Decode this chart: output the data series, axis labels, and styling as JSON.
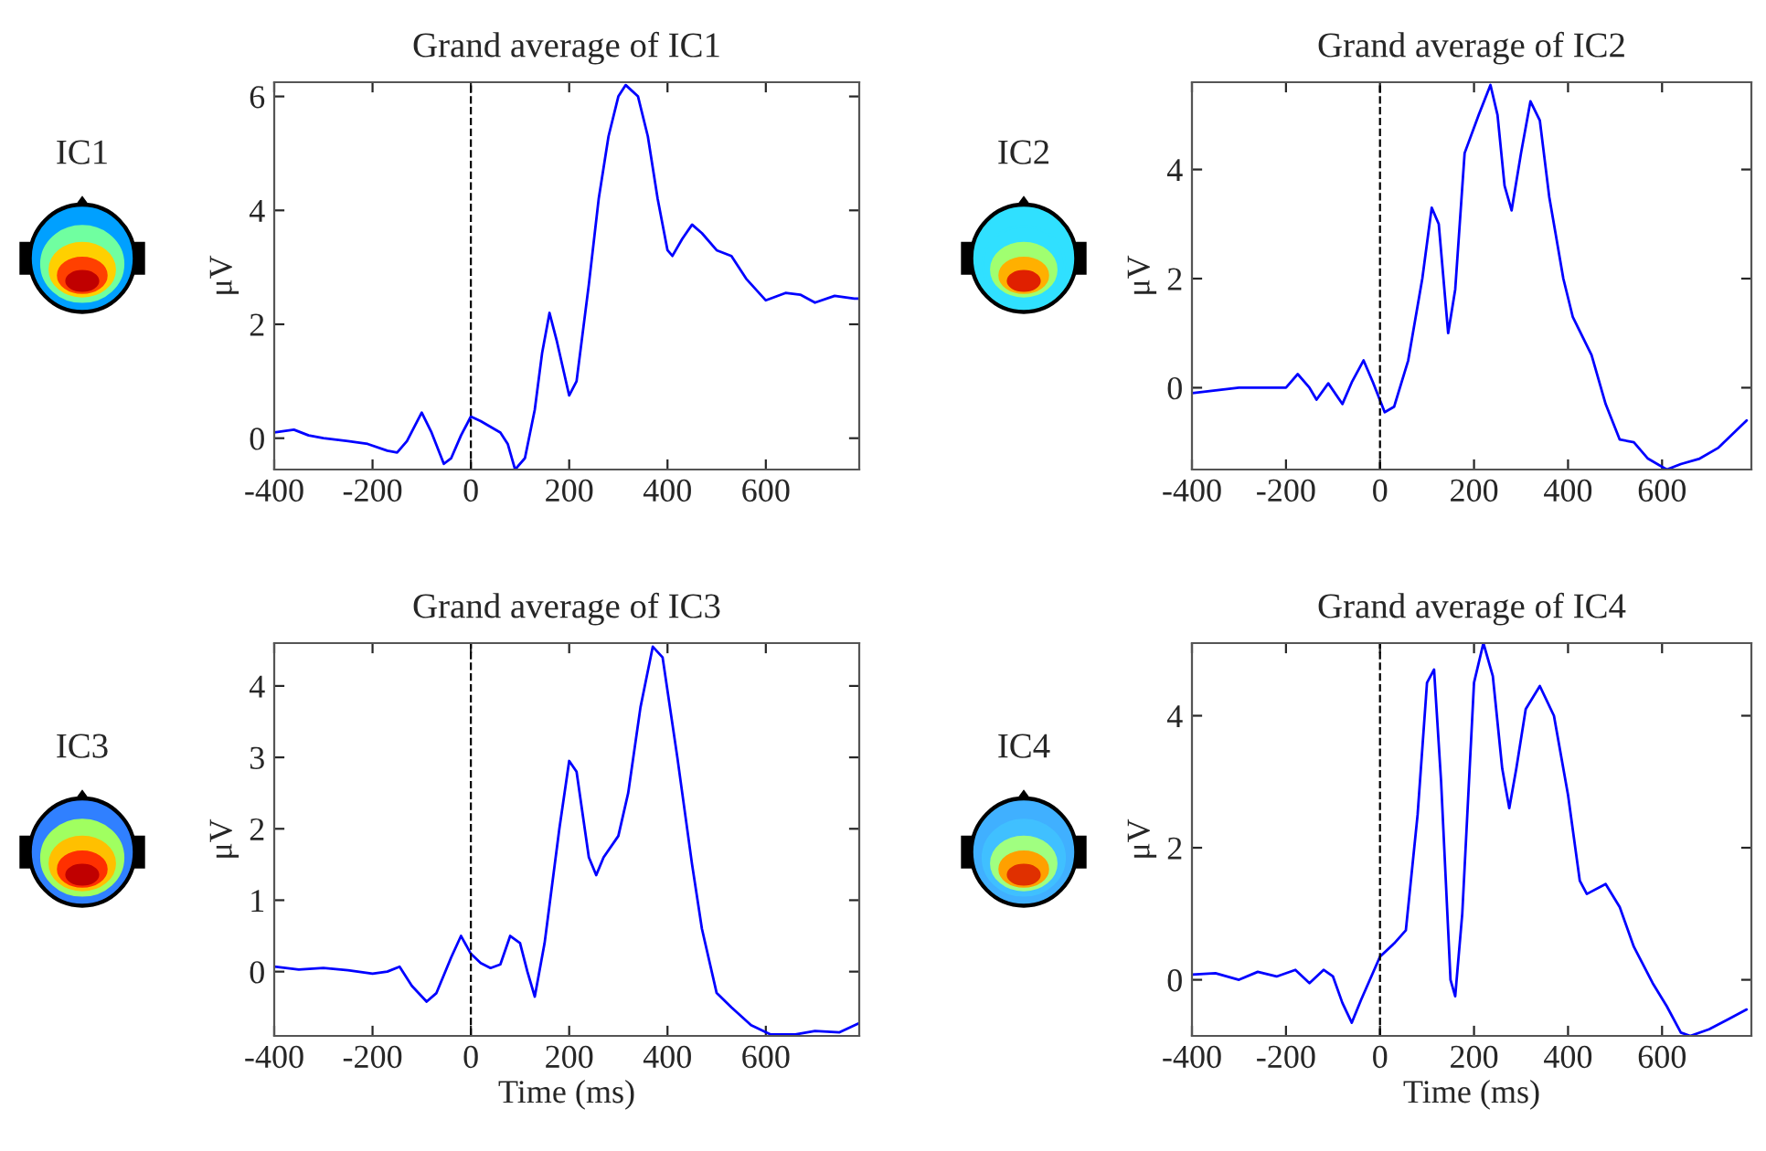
{
  "chart_data": [
    {
      "type": "line",
      "title": "Grand average of IC1",
      "ylabel": "μV",
      "annotations": [
        "IC1"
      ],
      "xlim": [
        -400,
        790
      ],
      "ylim": [
        -0.55,
        6.25
      ],
      "xticks": [
        -400,
        -200,
        0,
        200,
        400,
        600
      ],
      "yticks": [
        0,
        2,
        4,
        6
      ],
      "ref_lines": [
        {
          "axis": "x",
          "value": 0,
          "color": "#000000",
          "line_style": "dashed"
        }
      ],
      "grid": false,
      "legend": false,
      "series": [
        {
          "color": "#0000ff",
          "x": [
            -400,
            -360,
            -330,
            -300,
            -250,
            -210,
            -170,
            -150,
            -130,
            -100,
            -80,
            -55,
            -40,
            -20,
            0,
            20,
            60,
            75,
            90,
            110,
            130,
            145,
            160,
            175,
            200,
            215,
            240,
            260,
            280,
            300,
            315,
            340,
            360,
            380,
            400,
            410,
            430,
            450,
            470,
            500,
            530,
            560,
            600,
            640,
            670,
            700,
            740,
            780,
            790
          ],
          "values": [
            0.1,
            0.15,
            0.05,
            0.0,
            -0.05,
            -0.1,
            -0.22,
            -0.25,
            -0.05,
            0.45,
            0.1,
            -0.45,
            -0.35,
            0.05,
            0.38,
            0.3,
            0.1,
            -0.1,
            -0.55,
            -0.35,
            0.5,
            1.5,
            2.2,
            1.7,
            0.75,
            1.0,
            2.7,
            4.2,
            5.3,
            6.0,
            6.2,
            6.0,
            5.3,
            4.2,
            3.3,
            3.2,
            3.5,
            3.75,
            3.6,
            3.3,
            3.2,
            2.8,
            2.42,
            2.55,
            2.52,
            2.38,
            2.5,
            2.45,
            2.45
          ]
        }
      ]
    },
    {
      "type": "line",
      "title": "Grand average of IC2",
      "ylabel": "μV",
      "annotations": [
        "IC2"
      ],
      "xlim": [
        -400,
        790
      ],
      "ylim": [
        -1.5,
        5.6
      ],
      "xticks": [
        -400,
        -200,
        0,
        200,
        400,
        600
      ],
      "yticks": [
        0,
        2,
        4
      ],
      "ref_lines": [
        {
          "axis": "x",
          "value": 0,
          "color": "#000000",
          "line_style": "dashed"
        }
      ],
      "grid": false,
      "legend": false,
      "series": [
        {
          "color": "#0000ff",
          "x": [
            -400,
            -350,
            -300,
            -250,
            -200,
            -175,
            -150,
            -135,
            -110,
            -80,
            -60,
            -35,
            -15,
            10,
            30,
            60,
            90,
            110,
            125,
            145,
            160,
            180,
            210,
            235,
            250,
            265,
            280,
            300,
            320,
            340,
            360,
            390,
            410,
            450,
            480,
            510,
            540,
            570,
            610,
            640,
            680,
            720,
            780
          ],
          "values": [
            -0.1,
            -0.05,
            0.0,
            0.0,
            0.0,
            0.25,
            0.0,
            -0.22,
            0.08,
            -0.3,
            0.1,
            0.5,
            0.1,
            -0.45,
            -0.35,
            0.5,
            2.0,
            3.3,
            3.0,
            1.0,
            1.8,
            4.3,
            5.0,
            5.55,
            5.0,
            3.7,
            3.25,
            4.3,
            5.25,
            4.9,
            3.5,
            2.0,
            1.3,
            0.6,
            -0.3,
            -0.95,
            -1.0,
            -1.3,
            -1.5,
            -1.4,
            -1.3,
            -1.1,
            -0.6
          ]
        }
      ]
    },
    {
      "type": "line",
      "title": "Grand average of IC3",
      "xlabel": "Time (ms)",
      "ylabel": "μV",
      "annotations": [
        "IC3"
      ],
      "xlim": [
        -400,
        790
      ],
      "ylim": [
        -0.9,
        4.6
      ],
      "xticks": [
        -400,
        -200,
        0,
        200,
        400,
        600
      ],
      "yticks": [
        0,
        1,
        2,
        3,
        4
      ],
      "ref_lines": [
        {
          "axis": "x",
          "value": 0,
          "color": "#000000",
          "line_style": "dashed"
        }
      ],
      "grid": false,
      "legend": false,
      "series": [
        {
          "color": "#0000ff",
          "x": [
            -400,
            -350,
            -300,
            -250,
            -200,
            -170,
            -145,
            -120,
            -90,
            -70,
            -40,
            -20,
            0,
            20,
            40,
            60,
            80,
            100,
            115,
            130,
            150,
            180,
            200,
            215,
            240,
            255,
            270,
            300,
            320,
            345,
            370,
            390,
            420,
            450,
            470,
            500,
            530,
            570,
            610,
            660,
            700,
            750,
            790
          ],
          "values": [
            0.07,
            0.03,
            0.05,
            0.02,
            -0.03,
            0.0,
            0.07,
            -0.2,
            -0.42,
            -0.3,
            0.2,
            0.5,
            0.25,
            0.12,
            0.05,
            0.1,
            0.5,
            0.4,
            0.0,
            -0.35,
            0.4,
            2.0,
            2.95,
            2.8,
            1.6,
            1.35,
            1.6,
            1.9,
            2.5,
            3.7,
            4.55,
            4.4,
            3.0,
            1.5,
            0.6,
            -0.3,
            -0.5,
            -0.75,
            -0.88,
            -0.88,
            -0.83,
            -0.85,
            -0.72
          ]
        }
      ]
    },
    {
      "type": "line",
      "title": "Grand average of IC4",
      "xlabel": "Time (ms)",
      "ylabel": "μV",
      "annotations": [
        "IC4"
      ],
      "xlim": [
        -400,
        790
      ],
      "ylim": [
        -0.85,
        5.1
      ],
      "xticks": [
        -400,
        -200,
        0,
        200,
        400,
        600
      ],
      "yticks": [
        0,
        2,
        4
      ],
      "ref_lines": [
        {
          "axis": "x",
          "value": 0,
          "color": "#000000",
          "line_style": "dashed"
        }
      ],
      "grid": false,
      "legend": false,
      "series": [
        {
          "color": "#0000ff",
          "x": [
            -400,
            -350,
            -300,
            -260,
            -220,
            -180,
            -150,
            -120,
            -100,
            -80,
            -60,
            -40,
            0,
            30,
            55,
            80,
            100,
            115,
            130,
            150,
            160,
            175,
            200,
            220,
            240,
            260,
            275,
            290,
            310,
            340,
            370,
            400,
            425,
            440,
            480,
            510,
            540,
            580,
            610,
            640,
            660,
            700,
            740,
            780
          ],
          "values": [
            0.08,
            0.1,
            0.0,
            0.12,
            0.05,
            0.15,
            -0.05,
            0.15,
            0.05,
            -0.35,
            -0.65,
            -0.3,
            0.35,
            0.55,
            0.75,
            2.5,
            4.5,
            4.7,
            3.0,
            0.0,
            -0.25,
            1.0,
            4.5,
            5.1,
            4.6,
            3.2,
            2.6,
            3.2,
            4.1,
            4.45,
            4.0,
            2.8,
            1.5,
            1.3,
            1.45,
            1.1,
            0.5,
            -0.05,
            -0.4,
            -0.8,
            -0.85,
            -0.75,
            -0.6,
            -0.45
          ]
        }
      ]
    }
  ]
}
